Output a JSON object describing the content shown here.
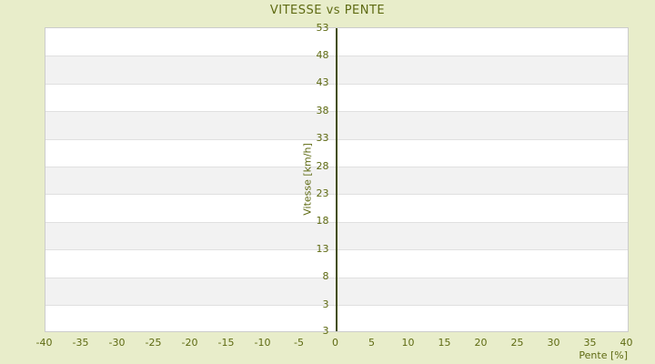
{
  "chart_data": {
    "type": "scatter",
    "title": "VITESSE vs PENTE",
    "xlabel": "Pente [%]",
    "ylabel": "Vitesse [km/h]",
    "x_ticks": [
      -40,
      -35,
      -30,
      -25,
      -20,
      -15,
      -10,
      -5,
      0,
      5,
      10,
      15,
      20,
      25,
      30,
      35,
      40
    ],
    "y_ticks": [
      53,
      48,
      43,
      38,
      33,
      28,
      23,
      18,
      13,
      8,
      3
    ],
    "y_axis_extra_bottom_label": "3",
    "xlim": [
      -40,
      40
    ],
    "ylim_labeled": [
      3,
      53
    ],
    "grid": "horizontal",
    "legend": "none",
    "series": [],
    "notes": "Plot area is empty (no data points rendered); vertical axis line drawn at x=0; minimum y label repeated at plot bottom edge.",
    "colors": {
      "page_background": "#e8edca",
      "plot_background": "#ffffff",
      "band_stripe": "#f2f2f2",
      "gridline": "#e0e0e0",
      "plot_border": "#cccccc",
      "text": "#5e6a12",
      "zero_axis_line": "#434e08"
    }
  }
}
